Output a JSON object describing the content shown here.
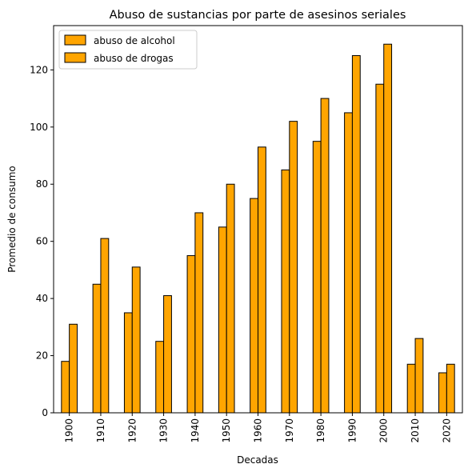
{
  "chart_data": {
    "type": "bar",
    "title": "Abuso de sustancias por parte de asesinos seriales",
    "xlabel": "Decadas",
    "ylabel": "Promedio de consumo",
    "categories": [
      "1900",
      "1910",
      "1920",
      "1930",
      "1940",
      "1950",
      "1960",
      "1970",
      "1980",
      "1990",
      "2000",
      "2010",
      "2020"
    ],
    "series": [
      {
        "name": "abuso de alcohol",
        "values": [
          18,
          45,
          35,
          25,
          55,
          65,
          75,
          85,
          95,
          105,
          115,
          17,
          14
        ]
      },
      {
        "name": "abuso de drogas",
        "values": [
          31,
          61,
          51,
          41,
          70,
          80,
          93,
          102,
          110,
          125,
          129,
          26,
          17
        ]
      }
    ],
    "ylim": [
      0,
      135.5
    ],
    "yticks": [
      0,
      20,
      40,
      60,
      80,
      100,
      120
    ],
    "grid": false,
    "legend_position": "top-left",
    "bar_color": "#ffa500",
    "edge_color": "#000000"
  }
}
